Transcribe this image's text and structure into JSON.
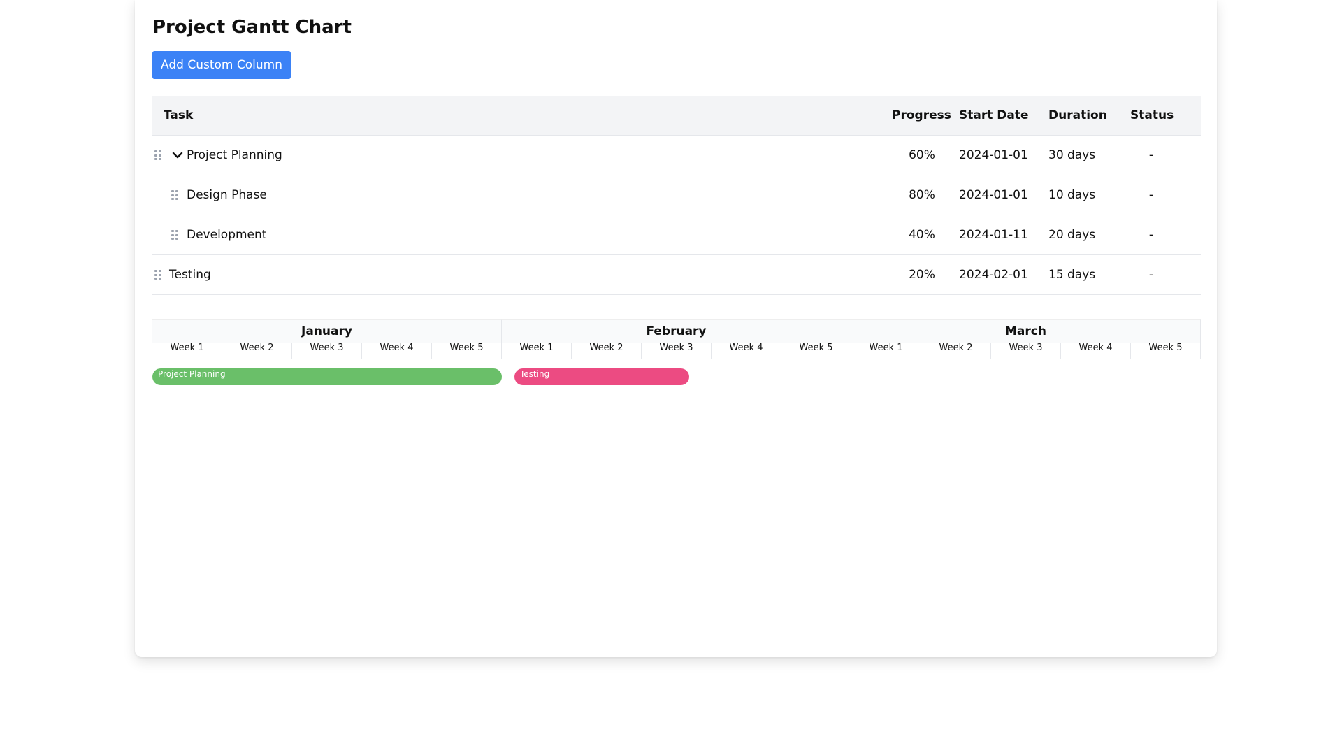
{
  "header": {
    "title": "Project Gantt Chart",
    "add_column_label": "Add Custom Column"
  },
  "table": {
    "columns": {
      "task": "Task",
      "progress": "Progress",
      "start": "Start Date",
      "duration": "Duration",
      "status": "Status"
    },
    "rows": [
      {
        "task": "Project Planning",
        "progress": "60%",
        "start": "2024-01-01",
        "duration": "30 days",
        "status": "-"
      },
      {
        "task": "Design Phase",
        "progress": "80%",
        "start": "2024-01-01",
        "duration": "10 days",
        "status": "-"
      },
      {
        "task": "Development",
        "progress": "40%",
        "start": "2024-01-11",
        "duration": "20 days",
        "status": "-"
      },
      {
        "task": "Testing",
        "progress": "20%",
        "start": "2024-02-01",
        "duration": "15 days",
        "status": "-"
      }
    ]
  },
  "timeline": {
    "months": [
      "January",
      "February",
      "March"
    ],
    "weeks": [
      "Week 1",
      "Week 2",
      "Week 3",
      "Week 4",
      "Week 5"
    ],
    "bars": [
      {
        "label": "Project Planning",
        "color": "#6abf69"
      },
      {
        "label": "Testing",
        "color": "#ec4b82"
      }
    ]
  },
  "colors": {
    "accent": "#3b82f6",
    "bar_green": "#6abf69",
    "bar_pink": "#ec4b82"
  }
}
